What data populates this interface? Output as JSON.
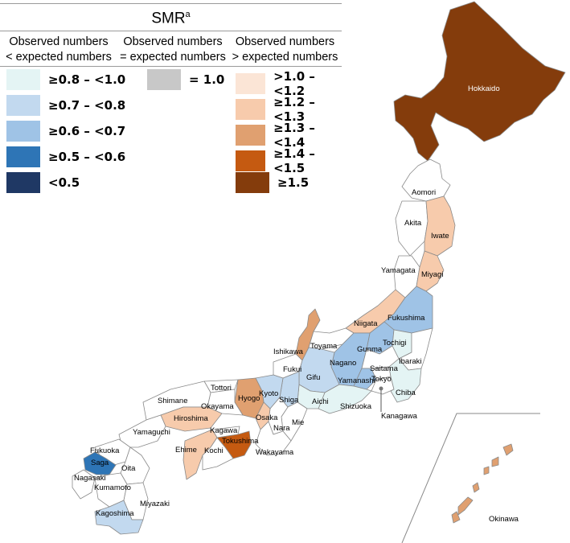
{
  "legend": {
    "title": "SMR",
    "title_superscript": "a",
    "columns": [
      {
        "header_line1": "Observed numbers",
        "header_line2": "< expected numbers"
      },
      {
        "header_line1": "Observed numbers",
        "header_line2": "= expected numbers"
      },
      {
        "header_line1": "Observed numbers",
        "header_line2": "> expected numbers"
      }
    ],
    "below_expected": [
      {
        "label": "≥0.8 – <1.0",
        "color": "#e4f4f4"
      },
      {
        "label": "≥0.7 – <0.8",
        "color": "#c2d9ef"
      },
      {
        "label": "≥0.6 – <0.7",
        "color": "#9fc3e6"
      },
      {
        "label": "≥0.5 – <0.6",
        "color": "#2e75b6"
      },
      {
        "label": "<0.5",
        "color": "#1f3864"
      }
    ],
    "equal_expected": {
      "label": "= 1.0",
      "color": "#c8c8c8"
    },
    "above_expected": [
      {
        "label": ">1.0 – <1.2",
        "color": "#fbe5d6"
      },
      {
        "label": "≥1.2 – <1.3",
        "color": "#f7cbac"
      },
      {
        "label": "≥1.3 – <1.4",
        "color": "#e0a070"
      },
      {
        "label": "≥1.4 – <1.5",
        "color": "#c55a11"
      },
      {
        "label": "≥1.5",
        "color": "#843c0c"
      }
    ]
  },
  "prefectures": {
    "hokkaido": "Hokkaido",
    "aomori": "Aomori",
    "akita": "Akita",
    "iwate": "Iwate",
    "yamagata": "Yamagata",
    "miyagi": "Miyagi",
    "niigata": "Niigata",
    "fukushima": "Fukushima",
    "toyama": "Toyama",
    "ishikawa": "Ishikawa",
    "gunma": "Gunma",
    "tochigi": "Tochigi",
    "ibaraki": "Ibaraki",
    "nagano": "Nagano",
    "fukui": "Fukui",
    "saitama": "Saitama",
    "tokyo": "Tokyo",
    "gifu": "Gifu",
    "yamanashi": "Yamanashi",
    "chiba": "Chiba",
    "kyoto": "Kyoto",
    "tottori": "Tottori",
    "hyogo": "Hyogo",
    "shiga": "Shiga",
    "aichi": "Aichi",
    "shimane": "Shimane",
    "okayama": "Okayama",
    "shizuoka": "Shizuoka",
    "kanagawa": "Kanagawa",
    "hiroshima": "Hiroshima",
    "osaka": "Osaka",
    "mie": "Mie",
    "nara": "Nara",
    "kagawa": "Kagawa",
    "yamaguchi": "Yamaguchi",
    "tokushima": "Tokushima",
    "ehime": "Ehime",
    "kochi": "Kochi",
    "wakayama": "Wakayama",
    "fukuoka": "Fukuoka",
    "saga": "Saga",
    "oita": "Oita",
    "nagasaki": "Nagasaki",
    "kumamoto": "Kumamoto",
    "miyazaki": "Miyazaki",
    "kagoshima": "Kagoshima",
    "okinawa": "Okinawa"
  }
}
